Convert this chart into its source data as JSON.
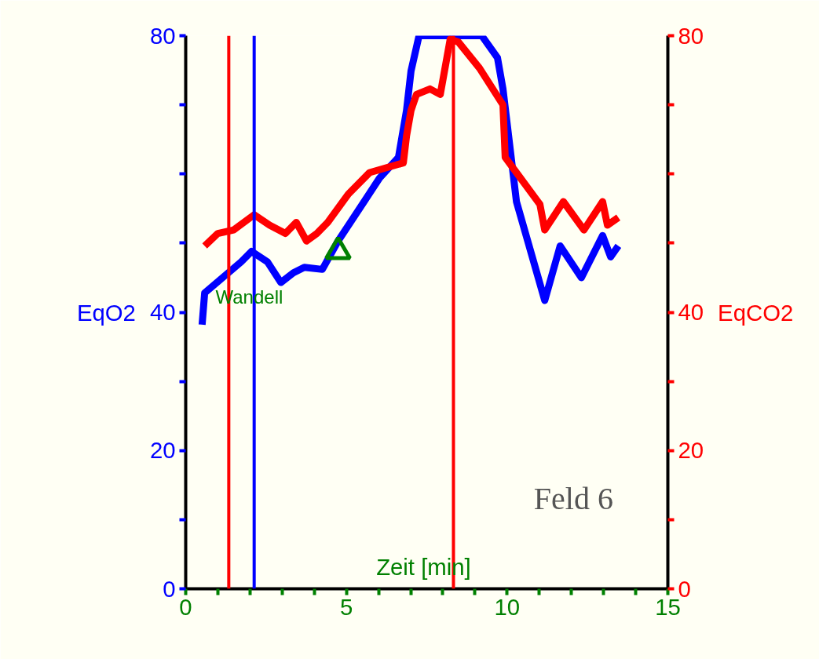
{
  "chart_data": {
    "type": "line",
    "xlabel": "Zeit  [min]",
    "ylabel": "EqO2",
    "y2label": "EqCO2",
    "xlim": [
      0,
      15
    ],
    "xticks": [
      0,
      {
        "value": 1,
        "label": null
      },
      {
        "value": 2,
        "label": null
      },
      {
        "value": 3,
        "label": null
      },
      {
        "value": 4,
        "label": null
      },
      5,
      {
        "value": 6,
        "label": null
      },
      {
        "value": 7,
        "label": null
      },
      {
        "value": 8,
        "label": null
      },
      {
        "value": 9,
        "label": null
      },
      10,
      {
        "value": 11,
        "label": null
      },
      {
        "value": 12,
        "label": null
      },
      {
        "value": 13,
        "label": null
      },
      {
        "value": 14,
        "label": null
      },
      15
    ],
    "ylim": [
      0,
      80
    ],
    "yticks": [
      0,
      {
        "value": 10,
        "label": null
      },
      20,
      {
        "value": 30,
        "label": null
      },
      40,
      {
        "value": 50,
        "label": null
      },
      {
        "value": 60,
        "label": null
      },
      {
        "value": 70,
        "label": null
      },
      80
    ],
    "y2lim": [
      0,
      80
    ],
    "y2ticks": [
      0,
      {
        "value": 10,
        "label": null
      },
      20,
      {
        "value": 30,
        "label": null
      },
      40,
      {
        "value": 50,
        "label": null
      },
      {
        "value": 60,
        "label": null
      },
      {
        "value": 70,
        "label": null
      },
      80
    ],
    "grid": false,
    "marker": "none",
    "line_style": "solid",
    "series": [
      {
        "color": "#0000ff",
        "x": [
          0.51,
          0.59,
          1.73,
          2.05,
          2.54,
          2.96,
          3.35,
          3.69,
          4.25,
          4.74,
          5.55,
          6.03,
          6.62,
          6.87,
          7.01,
          7.26,
          9.21,
          9.7,
          9.87,
          10.0,
          10.29,
          11.17,
          11.65,
          12.31,
          12.97,
          13.22,
          13.46
        ],
        "values": [
          38.2,
          42.8,
          47.3,
          48.8,
          47.3,
          44.3,
          45.7,
          46.5,
          46.2,
          50.3,
          56.0,
          59.4,
          62.4,
          69.2,
          74.9,
          80,
          80,
          76.8,
          72.3,
          67.3,
          56.0,
          41.7,
          49.6,
          45.0,
          51.1,
          48.0,
          49.6
        ]
      },
      {
        "color": "#ff0000",
        "x": [
          0.59,
          1.0,
          1.49,
          2.13,
          2.61,
          3.1,
          3.44,
          3.76,
          4.08,
          4.42,
          5.06,
          5.72,
          6.77,
          6.87,
          7.01,
          7.18,
          7.6,
          7.92,
          8.23,
          8.48,
          9.14,
          9.87,
          9.94,
          10.29,
          11.02,
          11.17,
          11.75,
          12.39,
          12.97,
          13.12,
          13.46
        ],
        "values": [
          49.6,
          51.4,
          51.9,
          54.1,
          52.6,
          51.4,
          53.0,
          50.3,
          51.4,
          53.0,
          57.1,
          60.2,
          61.6,
          65.5,
          69.2,
          71.5,
          72.3,
          71.5,
          79.5,
          79.1,
          75.3,
          70.0,
          62.4,
          60.2,
          55.6,
          51.9,
          56.0,
          51.9,
          56.0,
          52.6,
          53.7
        ]
      },
      {
        "type": "scatter",
        "marker": "triangle",
        "color": "#008000",
        "x": [
          4.74
        ],
        "values": [
          48.8
        ]
      }
    ],
    "ref_lines": [
      {
        "axis": "x",
        "value": 1.34,
        "color": "#ff0000"
      },
      {
        "axis": "x",
        "value": 2.13,
        "color": "#0000ff"
      },
      {
        "axis": "x",
        "value": 8.33,
        "color": "#ff0000"
      }
    ],
    "annotations": [
      "Wandell",
      "Feld 6"
    ]
  }
}
